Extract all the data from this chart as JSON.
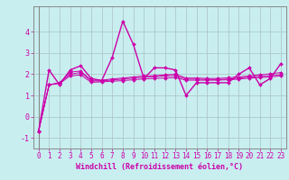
{
  "xlabel": "Windchill (Refroidissement éolien,°C)",
  "background_color": "#c8eef0",
  "grid_color": "#b0c8c8",
  "line_color": "#cc00aa",
  "spine_color": "#888888",
  "x_values": [
    0,
    1,
    2,
    3,
    4,
    5,
    6,
    7,
    8,
    9,
    10,
    11,
    12,
    13,
    14,
    15,
    16,
    17,
    18,
    19,
    20,
    21,
    22,
    23
  ],
  "series": [
    [
      -0.7,
      2.2,
      1.5,
      2.2,
      2.4,
      1.8,
      1.7,
      2.8,
      4.5,
      3.4,
      1.8,
      2.3,
      2.3,
      2.2,
      1.0,
      1.6,
      1.6,
      1.6,
      1.6,
      2.0,
      2.3,
      1.5,
      1.8,
      2.5
    ],
    [
      -0.7,
      1.5,
      1.6,
      2.1,
      2.15,
      1.72,
      1.72,
      1.78,
      1.82,
      1.87,
      1.92,
      1.93,
      1.97,
      2.0,
      1.82,
      1.82,
      1.8,
      1.8,
      1.83,
      1.87,
      1.92,
      1.97,
      2.02,
      2.08
    ],
    [
      -0.7,
      1.5,
      1.6,
      2.0,
      2.08,
      1.68,
      1.68,
      1.73,
      1.77,
      1.82,
      1.86,
      1.88,
      1.92,
      1.93,
      1.77,
      1.77,
      1.75,
      1.75,
      1.77,
      1.82,
      1.87,
      1.9,
      1.93,
      1.98
    ],
    [
      -0.7,
      1.5,
      1.56,
      1.92,
      1.97,
      1.62,
      1.64,
      1.67,
      1.7,
      1.74,
      1.78,
      1.8,
      1.82,
      1.84,
      1.72,
      1.72,
      1.72,
      1.72,
      1.74,
      1.77,
      1.82,
      1.84,
      1.87,
      1.92
    ]
  ],
  "ylim": [
    -1.5,
    5.2
  ],
  "xlim": [
    -0.5,
    23.5
  ],
  "yticks": [
    -1,
    0,
    1,
    2,
    3,
    4
  ],
  "xticks": [
    0,
    1,
    2,
    3,
    4,
    5,
    6,
    7,
    8,
    9,
    10,
    11,
    12,
    13,
    14,
    15,
    16,
    17,
    18,
    19,
    20,
    21,
    22,
    23
  ],
  "tick_fontsize": 5.5,
  "xlabel_fontsize": 6.0
}
